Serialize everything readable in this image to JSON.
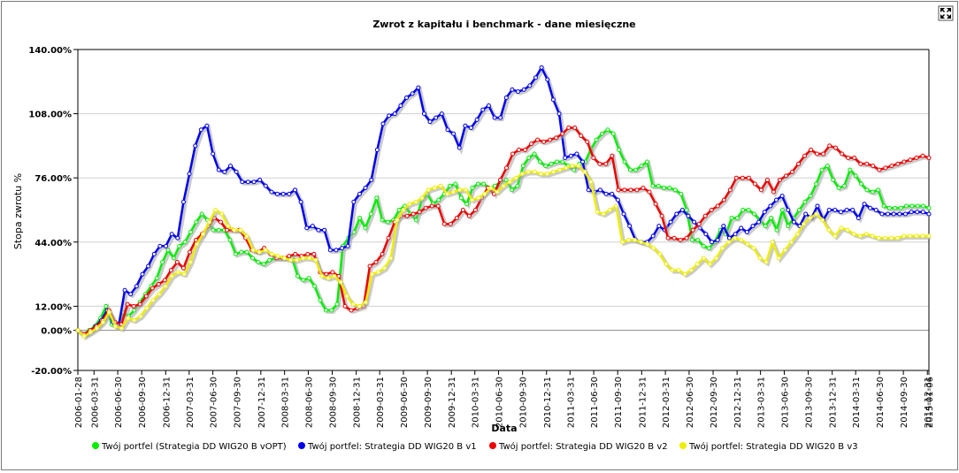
{
  "chart_data": {
    "type": "line",
    "title": "Zwrot z kapitału i benchmark - dane miesięczne",
    "xlabel": "Data",
    "ylabel": "Stopa zwrotu %",
    "ylim": [
      -20,
      140
    ],
    "y_ticks": [
      -20,
      0,
      12,
      44,
      76,
      108,
      140
    ],
    "y_tick_labels": [
      "-20.00%",
      "0.00%",
      "12.00%",
      "44.00%",
      "76.00%",
      "108.00%",
      "140.00%"
    ],
    "grid": true,
    "legend_position": "bottom",
    "x_start": "2006-01-28",
    "x_end": "2015-01-06",
    "x_tick_labels": [
      "2006-01-28",
      "2006-03-31",
      "2006-06-30",
      "2006-09-30",
      "2006-12-31",
      "2007-03-31",
      "2007-06-30",
      "2007-09-30",
      "2007-12-31",
      "2008-03-31",
      "2008-06-30",
      "2008-09-30",
      "2008-12-31",
      "2009-03-31",
      "2009-06-30",
      "2009-09-30",
      "2009-12-31",
      "2010-03-31",
      "2010-06-30",
      "2010-09-30",
      "2010-12-31",
      "2011-03-31",
      "2011-06-30",
      "2011-09-30",
      "2011-12-31",
      "2012-03-31",
      "2012-06-30",
      "2012-09-30",
      "2012-12-31",
      "2013-03-31",
      "2013-06-30",
      "2013-09-30",
      "2013-12-31",
      "2014-03-31",
      "2014-06-30",
      "2014-09-30",
      "2014-12-31",
      "2015-01-06"
    ],
    "series": [
      {
        "name": "Twój portfel (Strategia DD WIG20 B vOPT)",
        "color": "#00ee00",
        "values": [
          0,
          -2,
          0,
          2,
          6,
          12,
          3,
          2,
          9,
          7,
          10,
          14,
          18,
          22,
          26,
          34,
          40,
          36,
          42,
          44,
          49,
          54,
          58,
          55,
          50,
          50,
          50,
          45,
          38,
          39,
          39,
          36,
          34,
          33,
          35,
          36,
          36,
          36,
          36,
          27,
          25,
          26,
          22,
          15,
          10,
          10,
          13,
          42,
          46,
          49,
          56,
          51,
          58,
          66,
          55,
          54,
          55,
          60,
          62,
          58,
          55,
          65,
          68,
          63,
          65,
          68,
          72,
          73,
          66,
          63,
          71,
          73,
          73,
          71,
          72,
          74,
          75,
          70,
          72,
          82,
          86,
          88,
          84,
          82,
          83,
          84,
          84,
          82,
          80,
          83,
          84,
          90,
          95,
          98,
          100,
          98,
          90,
          84,
          80,
          80,
          82,
          84,
          72,
          72,
          71,
          71,
          70,
          68,
          60,
          45,
          45,
          42,
          41,
          44,
          50,
          48,
          56,
          56,
          60,
          60,
          58,
          55,
          52,
          56,
          50,
          60,
          52,
          56,
          60,
          64,
          67,
          73,
          80,
          82,
          75,
          71,
          72,
          80,
          77,
          73,
          70,
          69,
          70,
          62,
          61,
          61,
          61,
          62,
          62,
          62,
          62,
          61
        ]
      },
      {
        "name": "Twój portfel: Strategia DD WIG20 B v1",
        "color": "#0000ee",
        "values": [
          0,
          -2,
          -1,
          2,
          5,
          10,
          4,
          3,
          20,
          18,
          22,
          28,
          32,
          38,
          42,
          42,
          48,
          46,
          64,
          78,
          92,
          100,
          102,
          88,
          80,
          79,
          82,
          79,
          74,
          74,
          74,
          75,
          72,
          69,
          68,
          68,
          68,
          70,
          64,
          51,
          52,
          50,
          50,
          40,
          40,
          41,
          42,
          64,
          68,
          71,
          75,
          90,
          103,
          107,
          108,
          112,
          116,
          118,
          121,
          108,
          104,
          106,
          108,
          100,
          98,
          91,
          102,
          101,
          105,
          110,
          112,
          106,
          106,
          116,
          120,
          119,
          120,
          122,
          126,
          131,
          125,
          115,
          108,
          86,
          87,
          88,
          84,
          70,
          69,
          70,
          68,
          68,
          65,
          58,
          52,
          45,
          44,
          44,
          47,
          52,
          50,
          54,
          58,
          60,
          57,
          54,
          51,
          48,
          44,
          45,
          52,
          46,
          48,
          51,
          49,
          52,
          54,
          59,
          62,
          65,
          67,
          60,
          54,
          52,
          58,
          56,
          62,
          55,
          60,
          60,
          59,
          60,
          60,
          56,
          63,
          61,
          60,
          58,
          58,
          58,
          58,
          58,
          59,
          59,
          59,
          58
        ]
      },
      {
        "name": "Twój portfel: Strategia DD WIG20 B v2",
        "color": "#ee0000",
        "values": [
          0,
          -2,
          0,
          2,
          5,
          10,
          4,
          3,
          13,
          12,
          13,
          17,
          21,
          23,
          25,
          30,
          34,
          31,
          39,
          45,
          48,
          52,
          56,
          54,
          50,
          50,
          50,
          46,
          40,
          39,
          41,
          38,
          36,
          36,
          37,
          38,
          37,
          38,
          38,
          29,
          28,
          29,
          27,
          12,
          10,
          11,
          12,
          32,
          34,
          38,
          46,
          54,
          57,
          57,
          58,
          59,
          61,
          62,
          62,
          53,
          53,
          56,
          60,
          57,
          60,
          66,
          71,
          68,
          75,
          81,
          88,
          90,
          90,
          93,
          95,
          94,
          95,
          96,
          98,
          101,
          101,
          97,
          94,
          86,
          83,
          83,
          87,
          70,
          70,
          70,
          70,
          71,
          69,
          63,
          57,
          46,
          46,
          45,
          46,
          50,
          53,
          57,
          60,
          62,
          65,
          70,
          76,
          76,
          76,
          73,
          70,
          75,
          69,
          75,
          77,
          79,
          83,
          87,
          90,
          88,
          88,
          92,
          91,
          88,
          86,
          86,
          83,
          83,
          82,
          80,
          81,
          82,
          83,
          84,
          85,
          86,
          87,
          86
        ]
      },
      {
        "name": "Twój portfel: Strategia DD WIG20 B v3",
        "color": "#eeee00",
        "values": [
          0,
          -3,
          -1,
          1,
          4,
          9,
          2,
          1,
          6,
          5,
          7,
          11,
          15,
          18,
          22,
          27,
          29,
          28,
          34,
          43,
          48,
          54,
          60,
          58,
          52,
          50,
          50,
          47,
          40,
          39,
          40,
          38,
          37,
          36,
          35,
          35,
          36,
          36,
          35,
          27,
          26,
          27,
          24,
          17,
          13,
          12,
          14,
          28,
          29,
          31,
          36,
          55,
          60,
          63,
          64,
          66,
          70,
          71,
          72,
          68,
          69,
          70,
          70,
          65,
          66,
          68,
          71,
          69,
          72,
          74,
          76,
          78,
          79,
          79,
          78,
          78,
          79,
          80,
          81,
          82,
          82,
          79,
          74,
          59,
          58,
          60,
          62,
          44,
          45,
          45,
          44,
          43,
          41,
          38,
          33,
          30,
          30,
          28,
          30,
          33,
          36,
          33,
          36,
          41,
          44,
          46,
          45,
          43,
          41,
          36,
          34,
          44,
          36,
          40,
          44,
          48,
          53,
          56,
          58,
          55,
          50,
          47,
          51,
          50,
          48,
          47,
          48,
          47,
          46,
          46,
          46,
          46,
          47,
          47,
          47,
          47,
          47
        ]
      }
    ]
  }
}
